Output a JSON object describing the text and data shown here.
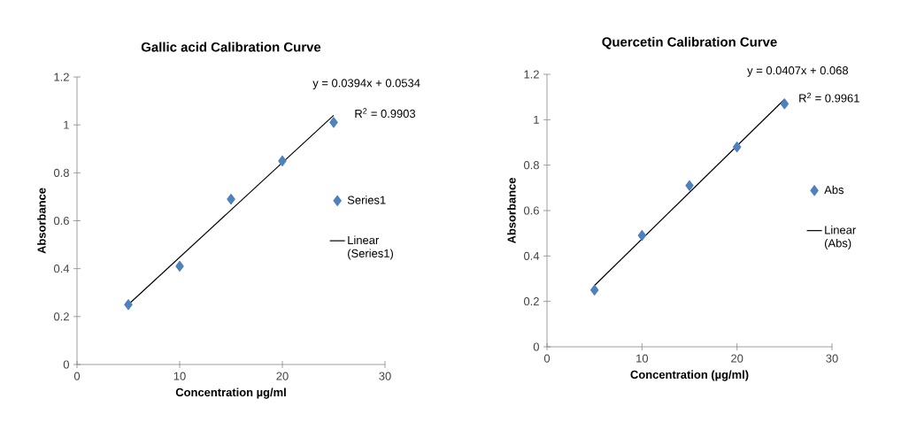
{
  "chart_data": [
    {
      "type": "scatter",
      "title": "Gallic acid Calibration Curve",
      "xlabel": "Concentration µg/ml",
      "ylabel": "Absorbance",
      "xlim": [
        0,
        30
      ],
      "ylim": [
        0,
        1.2
      ],
      "xticks": [
        0,
        10,
        20,
        30
      ],
      "yticks": [
        0,
        0.2,
        0.4,
        0.6,
        0.8,
        1,
        1.2
      ],
      "legend": "right",
      "annotations": [
        "y = 0.0394x + 0.0534",
        "R$^{2}$ = 0.9903"
      ],
      "series": [
        {
          "name": "Series1",
          "color": "#4f81bd",
          "marker": "diamond",
          "x": [
            5,
            10,
            15,
            20,
            25
          ],
          "values": [
            0.25,
            0.41,
            0.69,
            0.85,
            1.01
          ]
        },
        {
          "name": "Linear (Series1)",
          "type": "line",
          "color": "#000000",
          "marker": "none",
          "x": [
            5,
            25
          ],
          "values": [
            0.25,
            1.04
          ]
        }
      ]
    },
    {
      "type": "scatter",
      "title": "Quercetin Calibration Curve",
      "xlabel": "Concentration (µg/ml)",
      "ylabel": "Absorbance",
      "xlim": [
        0,
        30
      ],
      "ylim": [
        0,
        1.2
      ],
      "xticks": [
        0,
        10,
        20,
        30
      ],
      "yticks": [
        0,
        0.2,
        0.4,
        0.6,
        0.8,
        1,
        1.2
      ],
      "legend": "right",
      "annotations": [
        "y = 0.0407x + 0.068",
        "R$^{2}$ = 0.9961"
      ],
      "series": [
        {
          "name": "Abs",
          "color": "#4f81bd",
          "marker": "diamond",
          "x": [
            5,
            10,
            15,
            20,
            25
          ],
          "values": [
            0.25,
            0.49,
            0.71,
            0.88,
            1.07
          ]
        },
        {
          "name": "Linear (Abs)",
          "type": "line",
          "color": "#000000",
          "marker": "none",
          "x": [
            5,
            25
          ],
          "values": [
            0.27,
            1.09
          ]
        }
      ]
    }
  ]
}
